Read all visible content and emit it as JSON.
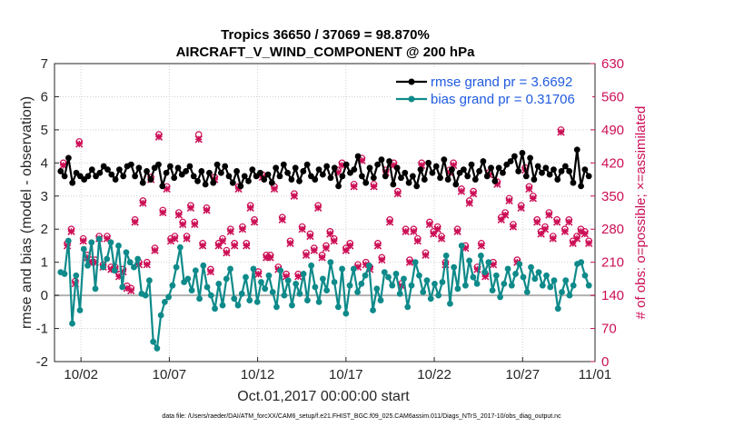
{
  "chart_data": {
    "type": "line",
    "title": "Tropics 36650 / 37069 = 98.870%",
    "subtitle": "AIRCRAFT_V_WIND_COMPONENT @ 200 hPa",
    "xlabel": "Oct.01,2017 00:00:00 start",
    "ylabel": "rmse and bias (model - observation)",
    "ylabel_right": "# of obs: o=possible; ×=assimilated",
    "xlim": [
      0.5,
      31.1
    ],
    "ylim": [
      -2,
      7
    ],
    "ylim_right": [
      0,
      630
    ],
    "x_tick_labels": [
      "10/02",
      "10/07",
      "10/12",
      "10/17",
      "10/22",
      "10/27",
      "11/01"
    ],
    "x_tick_values": [
      2,
      7,
      12,
      17,
      22,
      27,
      32
    ],
    "y_ticks": [
      "-2",
      "-1",
      "0",
      "1",
      "2",
      "3",
      "4",
      "5",
      "6",
      "7"
    ],
    "y_ticks_right": [
      "0",
      "70",
      "140",
      "210",
      "280",
      "350",
      "420",
      "490",
      "560",
      "630"
    ],
    "footnote": "data file: /Users/raeder/DAI/ATM_forcXX/CAM6_setup/f.e21.FHIST_BGC.f09_025.CAM6assim.011/Diags_NTrS_2017-10/obs_diag_output.nc",
    "colors": {
      "rmse": "#000000",
      "bias": "#0f8a8a",
      "obs": "#cc0f56",
      "zero": "#b0b0b0",
      "legend_text": "#1f5be0"
    },
    "series": [
      {
        "name": "rmse grand pr = 3.6692",
        "values": [
          3.75,
          3.6,
          4.15,
          3.4,
          3.7,
          3.6,
          3.5,
          3.6,
          3.8,
          3.6,
          3.7,
          3.9,
          3.8,
          3.65,
          3.5,
          3.8,
          3.6,
          3.9,
          3.95,
          3.6,
          3.85,
          3.4,
          3.75,
          3.5,
          3.85,
          3.95,
          3.3,
          3.7,
          3.9,
          3.55,
          3.85,
          3.65,
          3.75,
          3.9,
          3.6,
          3.45,
          3.75,
          3.35,
          3.7,
          3.4,
          3.95,
          3.7,
          3.9,
          3.6,
          3.4,
          3.75,
          3.3,
          3.6,
          3.45,
          3.8,
          3.6,
          3.7,
          3.5,
          3.65,
          3.4,
          3.85,
          3.6,
          3.95,
          3.7,
          3.5,
          3.85,
          3.45,
          3.75,
          3.95,
          3.6,
          3.5,
          3.8,
          3.65,
          3.9,
          3.55,
          3.85,
          3.3,
          3.6,
          3.95,
          3.7,
          3.8,
          4.2,
          3.6,
          3.4,
          3.85,
          3.55,
          3.95,
          4.1,
          3.6,
          4.05,
          3.35,
          3.85,
          3.55,
          3.7,
          3.4,
          3.6,
          3.3,
          3.8,
          3.5,
          4.0,
          3.7,
          3.9,
          3.55,
          4.1,
          3.5,
          3.8,
          3.35,
          3.7,
          3.8,
          3.6,
          3.95,
          3.5,
          3.75,
          4.05,
          3.6,
          3.85,
          3.45,
          3.85,
          3.7,
          3.95,
          4.05,
          4.2,
          3.75,
          4.3,
          3.6,
          4.15,
          3.5,
          3.9,
          3.7,
          3.85,
          3.65,
          3.8,
          3.5,
          3.75,
          3.9,
          3.75,
          3.4,
          4.4,
          3.3,
          3.8,
          3.6
        ]
      },
      {
        "name": "bias grand pr = 0.31706",
        "values": [
          0.7,
          0.65,
          1.65,
          -0.85,
          0.6,
          -0.45,
          1.4,
          0.9,
          1.6,
          0.2,
          1.7,
          0.85,
          1.1,
          1.6,
          0.75,
          1.5,
          0.25,
          1.3,
          1.0,
          0.85,
          1.1,
          0.05,
          0.0,
          0.45,
          -1.4,
          -1.6,
          -0.6,
          -0.2,
          -0.05,
          0.3,
          0.85,
          1.45,
          0.4,
          0.5,
          0.15,
          0.75,
          -0.1,
          0.9,
          0.25,
          0.0,
          -0.4,
          0.35,
          -0.3,
          0.5,
          0.8,
          -0.1,
          -0.3,
          0.05,
          0.55,
          -0.15,
          0.8,
          -0.2,
          0.4,
          0.2,
          0.6,
          0.1,
          -0.35,
          0.75,
          0.0,
          0.45,
          -0.3,
          0.35,
          0.05,
          0.65,
          -0.15,
          0.9,
          0.25,
          -0.2,
          0.5,
          0.15,
          1.0,
          0.4,
          -0.35,
          0.8,
          -0.55,
          0.3,
          0.8,
          0.1,
          0.35,
          0.6,
          0.9,
          -0.45,
          0.2,
          -0.15,
          0.7,
          0.55,
          0.3,
          0.65,
          0.05,
          0.5,
          -0.35,
          0.3,
          1.0,
          0.6,
          0.1,
          0.45,
          -0.1,
          0.35,
          0.0,
          0.4,
          1.2,
          -0.25,
          0.85,
          0.2,
          1.5,
          0.3,
          1.05,
          0.55,
          0.35,
          1.2,
          0.7,
          1.0,
          0.15,
          0.6,
          -0.05,
          0.35,
          0.8,
          0.3,
          0.65,
          0.95,
          0.55,
          0.1,
          0.85,
          0.5,
          0.7,
          0.3,
          0.6,
          0.25,
          0.45,
          -0.4,
          0.1,
          0.45,
          0.0,
          0.3,
          0.95,
          1.0,
          0.6,
          0.3
        ]
      },
      {
        "name": "obs possible",
        "axis": "right",
        "marker": "o",
        "values": [
          420,
          250,
          280,
          170,
          465,
          260,
          225,
          215,
          215,
          265,
          205,
          265,
          200,
          200,
          185,
          195,
          160,
          155,
          300,
          210,
          340,
          210,
          390,
          240,
          480,
          320,
          370,
          260,
          265,
          315,
          295,
          265,
          330,
          295,
          480,
          250,
          325,
          195,
          390,
          250,
          260,
          235,
          280,
          250,
          370,
          285,
          250,
          330,
          300,
          190,
          395,
          225,
          225,
          370,
          200,
          305,
          185,
          255,
          355,
          185,
          285,
          230,
          270,
          240,
          330,
          225,
          245,
          275,
          260,
          405,
          420,
          240,
          250,
          375,
          205,
          430,
          210,
          200,
          375,
          250,
          220,
          405,
          300,
          420,
          360,
          165,
          280,
          215,
          280,
          260,
          420,
          230,
          295,
          275,
          285,
          265,
          210,
          405,
          420,
          280,
          365,
          245,
          340,
          360,
          200,
          250,
          185,
          400,
          210,
          380,
          305,
          315,
          345,
          290,
          215,
          330,
          410,
          370,
          350,
          300,
          275,
          285,
          315,
          265,
          300,
          490,
          280,
          300,
          255,
          265,
          280,
          275,
          255
        ]
      },
      {
        "name": "obs assimilated",
        "axis": "right",
        "marker": "x",
        "values": [
          415,
          245,
          275,
          165,
          460,
          255,
          220,
          210,
          210,
          260,
          200,
          260,
          195,
          195,
          180,
          190,
          155,
          150,
          295,
          205,
          335,
          205,
          385,
          235,
          475,
          315,
          365,
          255,
          260,
          310,
          290,
          260,
          325,
          290,
          470,
          245,
          320,
          190,
          385,
          245,
          255,
          230,
          275,
          245,
          365,
          280,
          245,
          325,
          295,
          185,
          390,
          220,
          220,
          365,
          195,
          300,
          180,
          250,
          350,
          180,
          280,
          225,
          265,
          235,
          325,
          220,
          240,
          270,
          255,
          400,
          415,
          235,
          245,
          370,
          200,
          425,
          205,
          195,
          370,
          245,
          215,
          400,
          295,
          415,
          355,
          160,
          275,
          210,
          275,
          255,
          415,
          225,
          290,
          270,
          280,
          260,
          205,
          400,
          415,
          275,
          360,
          240,
          335,
          355,
          195,
          245,
          180,
          395,
          205,
          375,
          300,
          310,
          340,
          285,
          210,
          325,
          405,
          365,
          345,
          295,
          270,
          280,
          310,
          260,
          295,
          485,
          275,
          295,
          250,
          260,
          275,
          270,
          250
        ]
      }
    ]
  }
}
